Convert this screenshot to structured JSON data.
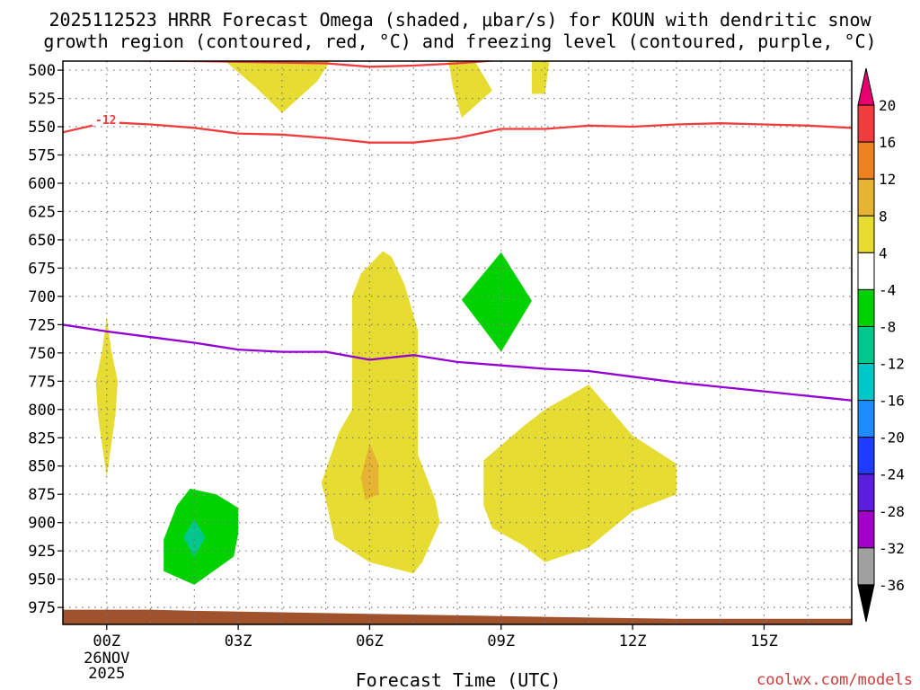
{
  "chart_data": {
    "type": "heatmap",
    "title_line1": "2025112523 HRRR Forecast Omega (shaded, μbar/s) for KOUN with dendritic snow",
    "title_line2": "growth region (contoured, red, °C) and freezing level (contoured, purple, °C)",
    "xlabel": "Forecast Time (UTC)",
    "ylabel": "",
    "credit": "coolwx.com/models",
    "x_axis": {
      "unit": "forecast hour",
      "range": [
        -1,
        17
      ],
      "ticks": [
        {
          "hour": 0,
          "label": "00Z",
          "sub1": "26NOV",
          "sub2": "2025"
        },
        {
          "hour": 3,
          "label": "03Z"
        },
        {
          "hour": 6,
          "label": "06Z"
        },
        {
          "hour": 9,
          "label": "09Z"
        },
        {
          "hour": 12,
          "label": "12Z"
        },
        {
          "hour": 15,
          "label": "15Z"
        }
      ],
      "grid_hours": [
        0,
        1,
        2,
        3,
        4,
        5,
        6,
        7,
        8,
        9,
        10,
        11,
        12,
        13,
        14,
        15,
        16
      ]
    },
    "y_axis": {
      "unit": "hPa",
      "top": 492,
      "bottom": 990,
      "ticks": [
        500,
        525,
        550,
        575,
        600,
        625,
        650,
        675,
        700,
        725,
        750,
        775,
        800,
        825,
        850,
        875,
        900,
        925,
        950,
        975
      ]
    },
    "colorbar": {
      "unit": "μbar/s",
      "bins": [
        {
          "from": 20,
          "to": null,
          "color": "#e8006e"
        },
        {
          "from": 16,
          "to": 20,
          "color": "#f03c3c"
        },
        {
          "from": 12,
          "to": 16,
          "color": "#ee8220"
        },
        {
          "from": 8,
          "to": 12,
          "color": "#e6b432"
        },
        {
          "from": 4,
          "to": 8,
          "color": "#e6dc32"
        },
        {
          "from": -4,
          "to": 4,
          "color": "#ffffff"
        },
        {
          "from": -8,
          "to": -4,
          "color": "#00d200"
        },
        {
          "from": -12,
          "to": -8,
          "color": "#00c88c"
        },
        {
          "from": -16,
          "to": -12,
          "color": "#00c8c8"
        },
        {
          "from": -20,
          "to": -16,
          "color": "#1e8cff"
        },
        {
          "from": -24,
          "to": -20,
          "color": "#1e3cff"
        },
        {
          "from": -28,
          "to": -24,
          "color": "#5a1edc"
        },
        {
          "from": -32,
          "to": -28,
          "color": "#a000c8"
        },
        {
          "from": -36,
          "to": -32,
          "color": "#a0a0a0"
        },
        {
          "from": null,
          "to": -36,
          "color": "#000000"
        }
      ],
      "labels": [
        20,
        16,
        12,
        8,
        4,
        -4,
        -8,
        -12,
        -16,
        -20,
        -24,
        -28,
        -32,
        -36
      ]
    },
    "shaded_regions": [
      {
        "name": "upward-motion-4-8",
        "color": "#e6dc32",
        "points": [
          [
            2.7,
            492
          ],
          [
            3.4,
            515
          ],
          [
            4.0,
            538
          ],
          [
            4.8,
            510
          ],
          [
            5.1,
            492
          ]
        ]
      },
      {
        "name": "upward-motion-4-8",
        "color": "#e6dc32",
        "points": [
          [
            7.8,
            492
          ],
          [
            7.9,
            515
          ],
          [
            8.1,
            542
          ],
          [
            8.8,
            518
          ],
          [
            8.4,
            492
          ]
        ]
      },
      {
        "name": "upward-motion-4-8",
        "color": "#e6dc32",
        "points": [
          [
            9.7,
            492
          ],
          [
            9.7,
            521
          ],
          [
            10.0,
            521
          ],
          [
            10.1,
            492
          ]
        ]
      },
      {
        "name": "upward-motion-4-8",
        "color": "#e6dc32",
        "points": [
          [
            0.0,
            718
          ],
          [
            0.1,
            747
          ],
          [
            0.25,
            775
          ],
          [
            0.2,
            805
          ],
          [
            0.0,
            860
          ],
          [
            -0.2,
            805
          ],
          [
            -0.25,
            775
          ],
          [
            -0.1,
            747
          ]
        ]
      },
      {
        "name": "upward-motion-4-8",
        "color": "#e6dc32",
        "points": [
          [
            6.3,
            660
          ],
          [
            6.5,
            665
          ],
          [
            6.8,
            690
          ],
          [
            7.1,
            730
          ],
          [
            7.1,
            840
          ],
          [
            7.5,
            880
          ],
          [
            7.6,
            900
          ],
          [
            7.2,
            935
          ],
          [
            7.0,
            945
          ],
          [
            6.5,
            940
          ],
          [
            6.0,
            935
          ],
          [
            5.2,
            915
          ],
          [
            5.0,
            880
          ],
          [
            4.9,
            865
          ],
          [
            5.3,
            820
          ],
          [
            5.6,
            800
          ],
          [
            5.6,
            700
          ],
          [
            5.8,
            680
          ]
        ]
      },
      {
        "name": "upward-motion-8-12",
        "color": "#e6b432",
        "points": [
          [
            6.0,
            830
          ],
          [
            6.2,
            848
          ],
          [
            6.2,
            875
          ],
          [
            5.9,
            880
          ],
          [
            5.8,
            860
          ]
        ]
      },
      {
        "name": "upward-motion-4-8",
        "color": "#e6dc32",
        "points": [
          [
            11.0,
            778
          ],
          [
            12.0,
            823
          ],
          [
            13.0,
            848
          ],
          [
            13.0,
            875
          ],
          [
            12.0,
            890
          ],
          [
            11.0,
            922
          ],
          [
            10.0,
            935
          ],
          [
            9.5,
            920
          ],
          [
            8.8,
            905
          ],
          [
            8.6,
            885
          ],
          [
            8.6,
            845
          ],
          [
            9.5,
            815
          ],
          [
            10.0,
            800
          ]
        ]
      },
      {
        "name": "downward-motion-green",
        "color": "#00d200",
        "points": [
          [
            9.0,
            661
          ],
          [
            9.7,
            704
          ],
          [
            9.0,
            749
          ],
          [
            8.1,
            703
          ]
        ]
      },
      {
        "name": "downward-motion-green",
        "color": "#00d200",
        "points": [
          [
            1.9,
            870
          ],
          [
            2.5,
            875
          ],
          [
            3.0,
            887
          ],
          [
            3.0,
            910
          ],
          [
            2.9,
            930
          ],
          [
            2.0,
            955
          ],
          [
            1.3,
            943
          ],
          [
            1.3,
            915
          ],
          [
            1.6,
            885
          ]
        ]
      },
      {
        "name": "downward-motion-teal",
        "color": "#00c88c",
        "points": [
          [
            2.0,
            897
          ],
          [
            2.25,
            913
          ],
          [
            2.0,
            930
          ],
          [
            1.75,
            913
          ]
        ]
      }
    ],
    "contours": [
      {
        "name": "dendritic-growth-upper",
        "label": "",
        "color": "#f03c3c",
        "points": [
          [
            -1,
            491
          ],
          [
            2,
            492
          ],
          [
            5,
            494
          ],
          [
            6,
            497
          ],
          [
            7,
            496
          ],
          [
            8,
            494
          ],
          [
            9,
            491
          ]
        ]
      },
      {
        "name": "dendritic-growth-lower",
        "label": "-12",
        "color": "#f03c3c",
        "points": [
          [
            -1,
            555
          ],
          [
            0,
            546
          ],
          [
            1,
            548
          ],
          [
            2,
            551
          ],
          [
            3,
            556
          ],
          [
            4,
            557
          ],
          [
            5,
            560
          ],
          [
            6,
            564
          ],
          [
            7,
            564
          ],
          [
            8,
            560
          ],
          [
            9,
            552
          ],
          [
            10,
            552
          ],
          [
            11,
            549
          ],
          [
            12,
            550
          ],
          [
            13,
            548
          ],
          [
            14,
            547
          ],
          [
            15,
            548
          ],
          [
            16,
            549
          ],
          [
            17,
            551
          ]
        ]
      },
      {
        "name": "freezing-level",
        "label": "",
        "color": "#9400d3",
        "points": [
          [
            -1,
            725
          ],
          [
            0,
            731
          ],
          [
            1,
            736
          ],
          [
            2,
            741
          ],
          [
            3,
            747
          ],
          [
            4,
            749
          ],
          [
            5,
            749
          ],
          [
            6,
            756
          ],
          [
            7,
            752
          ],
          [
            8,
            758
          ],
          [
            9,
            761
          ],
          [
            10,
            764
          ],
          [
            11,
            766
          ],
          [
            12,
            771
          ],
          [
            13,
            776
          ],
          [
            14,
            780
          ],
          [
            15,
            784
          ],
          [
            16,
            788
          ],
          [
            17,
            792
          ]
        ]
      }
    ],
    "terrain": {
      "name": "ground",
      "color": "#a0522d",
      "points": [
        [
          -1,
          977
        ],
        [
          1,
          977
        ],
        [
          2,
          978
        ],
        [
          5,
          980
        ],
        [
          8,
          982
        ],
        [
          11,
          984
        ],
        [
          13,
          985
        ],
        [
          17,
          985
        ]
      ]
    }
  }
}
